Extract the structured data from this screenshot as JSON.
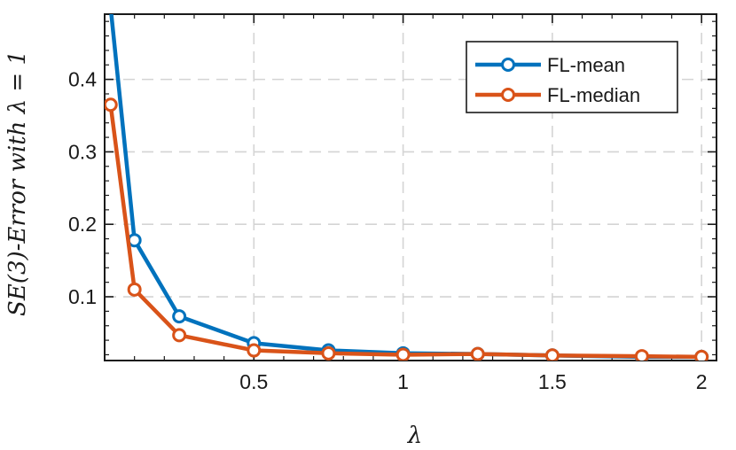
{
  "chart_data": {
    "type": "line",
    "x": [
      0.02,
      0.1,
      0.25,
      0.5,
      0.75,
      1.0,
      1.25,
      1.5,
      1.8,
      2.0
    ],
    "series": [
      {
        "name": "FL-mean",
        "color": "#0072BD",
        "values": [
          0.5,
          0.178,
          0.073,
          0.036,
          0.026,
          0.022,
          0.021,
          0.019,
          0.017,
          0.017
        ]
      },
      {
        "name": "FL-median",
        "color": "#D95319",
        "values": [
          0.365,
          0.11,
          0.047,
          0.026,
          0.022,
          0.02,
          0.021,
          0.019,
          0.018,
          0.017
        ]
      }
    ],
    "xlabel": "λ",
    "ylabel": "SE(3)-Error with λ = 1",
    "xlim": [
      0.0,
      2.05
    ],
    "ylim": [
      0.012,
      0.49
    ],
    "xticks": [
      0.5,
      1,
      1.5,
      2
    ],
    "xtick_labels": [
      "0.5",
      "1",
      "1.5",
      "2"
    ],
    "yticks": [
      0.1,
      0.2,
      0.3,
      0.4
    ],
    "ytick_labels": [
      "0.1",
      "0.2",
      "0.3",
      "0.4"
    ],
    "grid": true,
    "legend_position": "top-right"
  }
}
